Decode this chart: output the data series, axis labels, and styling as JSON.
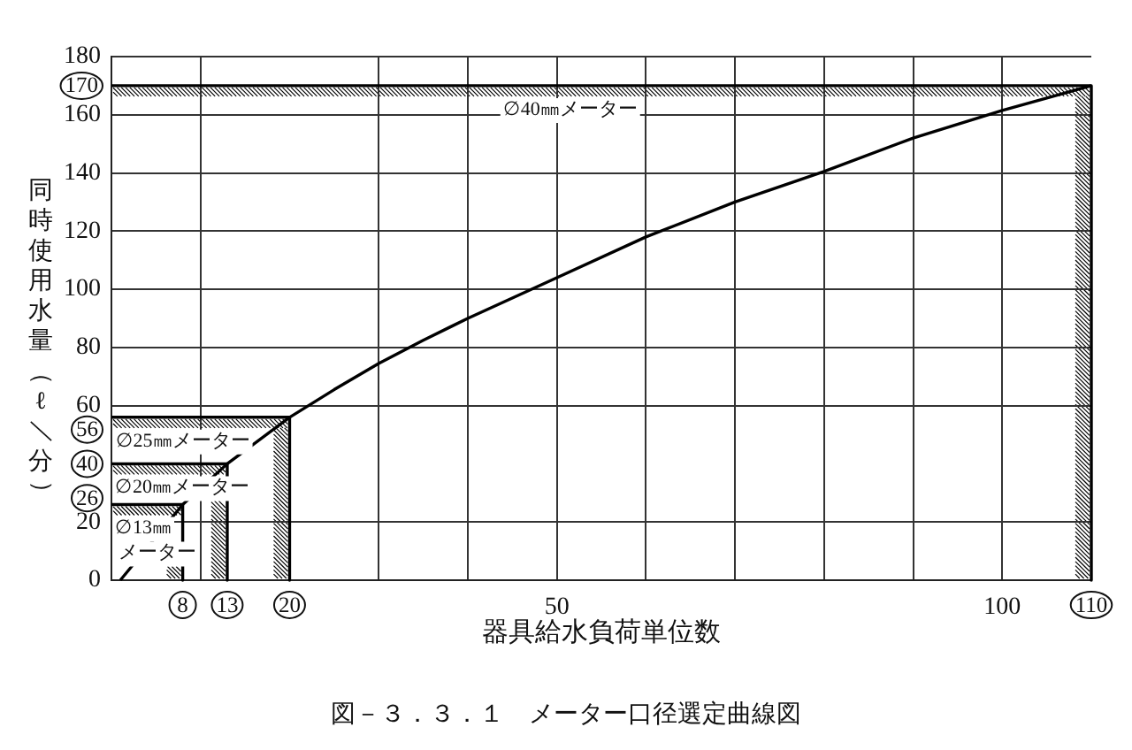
{
  "chart_data": {
    "type": "line",
    "title": "図－３．３．１　メーター口径選定曲線図",
    "xlabel": "器具給水負荷単位数",
    "ylabel": "同時使用水量（ℓ／分）",
    "xlim": [
      0,
      110
    ],
    "ylim": [
      0,
      180
    ],
    "xticks": [
      {
        "value": 0,
        "label": null
      },
      {
        "value": 8,
        "label": "8"
      },
      {
        "value": 10,
        "label": null
      },
      {
        "value": 13,
        "label": "13"
      },
      {
        "value": 20,
        "label": "20"
      },
      {
        "value": 30,
        "label": null
      },
      {
        "value": 40,
        "label": null
      },
      50,
      {
        "value": 60,
        "label": null
      },
      {
        "value": 70,
        "label": null
      },
      {
        "value": 80,
        "label": null
      },
      {
        "value": 90,
        "label": null
      },
      100,
      {
        "value": 110,
        "label": "110"
      }
    ],
    "yticks": [
      0,
      20,
      {
        "value": 26,
        "label": "26"
      },
      {
        "value": 40,
        "label": "40"
      },
      {
        "value": 56,
        "label": "56"
      },
      60,
      80,
      100,
      120,
      140,
      160,
      {
        "value": 170,
        "label": "170"
      },
      180
    ],
    "grid": true,
    "series": [
      {
        "color": "#000000",
        "x": [
          1,
          8,
          13,
          20,
          25,
          30,
          35,
          40,
          50,
          60,
          70,
          80,
          90,
          100,
          110
        ],
        "values": [
          0,
          26,
          40,
          56,
          65.5,
          74.5,
          82.5,
          90,
          104,
          118,
          130,
          140.5,
          152,
          161.5,
          170
        ]
      },
      {
        "color": "#000000",
        "x": [
          0,
          8,
          8
        ],
        "values": [
          26,
          26,
          0
        ]
      },
      {
        "color": "#000000",
        "x": [
          0,
          13,
          13
        ],
        "values": [
          40,
          40,
          0
        ]
      },
      {
        "color": "#000000",
        "x": [
          0,
          20,
          20
        ],
        "values": [
          56,
          56,
          0
        ]
      },
      {
        "color": "#000000",
        "x": [
          0,
          110,
          110
        ],
        "values": [
          170,
          170,
          0
        ]
      }
    ],
    "annotations": [
      {
        "text": "∅13㎜メーター",
        "x": 3.5,
        "y": 26
      },
      {
        "text": "∅20㎜メーター",
        "x": 7.5,
        "y": 40
      },
      {
        "text": "∅25㎜メーター",
        "x": 8,
        "y": 56
      },
      {
        "text": "∅40㎜メーター",
        "x": 51.5,
        "y": 170
      }
    ]
  }
}
